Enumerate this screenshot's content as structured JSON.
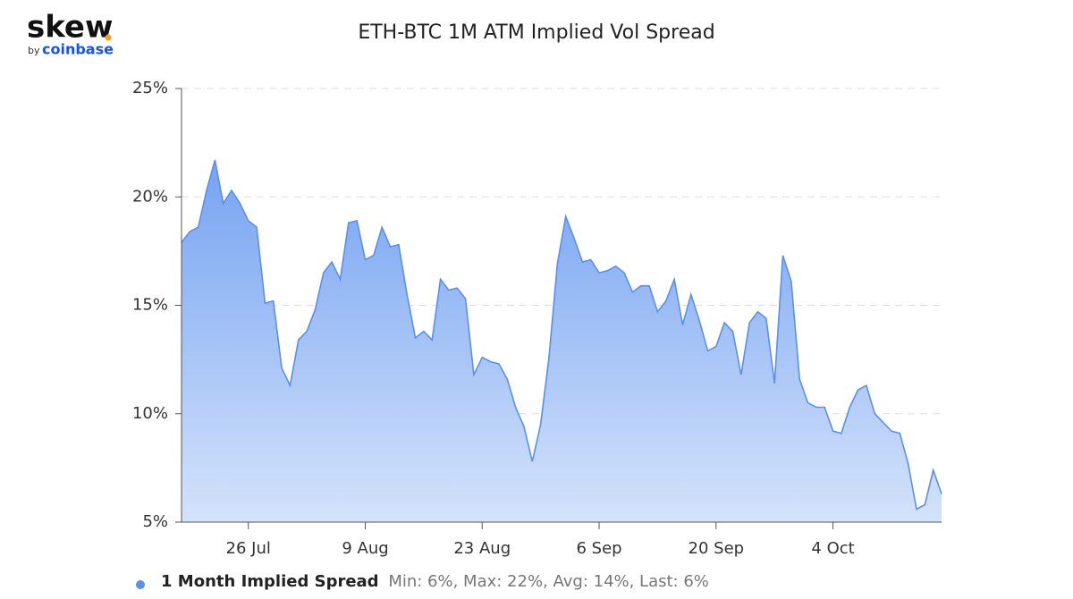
{
  "logo": {
    "name": "skew",
    "by": "by",
    "brand": "coinbase"
  },
  "chart_data": {
    "type": "area",
    "title": "ETH-BTC 1M ATM Implied Vol Spread",
    "categories": [
      null,
      null,
      null,
      null,
      null,
      null,
      null,
      null,
      "26 Jul",
      null,
      null,
      null,
      null,
      null,
      null,
      null,
      null,
      null,
      null,
      null,
      null,
      null,
      "9 Aug",
      null,
      null,
      null,
      null,
      null,
      null,
      null,
      null,
      null,
      null,
      null,
      null,
      null,
      "23 Aug",
      null,
      null,
      null,
      null,
      null,
      null,
      null,
      null,
      null,
      null,
      null,
      null,
      null,
      "6 Sep",
      null,
      null,
      null,
      null,
      null,
      null,
      null,
      null,
      null,
      null,
      null,
      null,
      null,
      "20 Sep",
      null,
      null,
      null,
      null,
      null,
      null,
      null,
      null,
      null,
      null,
      null,
      null,
      null,
      "4 Oct",
      null,
      null,
      null,
      null,
      null,
      null,
      null,
      null,
      null,
      null,
      null,
      null,
      null
    ],
    "series": [
      {
        "name": "1 Month Implied Spread",
        "color": "#5b8fe8",
        "values": [
          17.9,
          18.4,
          18.6,
          20.3,
          21.7,
          19.7,
          20.3,
          19.7,
          18.9,
          18.6,
          15.1,
          15.2,
          12.1,
          11.3,
          13.4,
          13.8,
          14.8,
          16.5,
          17.0,
          16.2,
          18.8,
          18.9,
          17.1,
          17.3,
          18.6,
          17.7,
          17.8,
          15.5,
          13.5,
          13.8,
          13.4,
          16.2,
          15.7,
          15.8,
          15.3,
          11.8,
          12.6,
          12.4,
          12.3,
          11.6,
          10.3,
          9.4,
          7.8,
          9.5,
          12.6,
          16.9,
          19.1,
          18.1,
          17.0,
          17.1,
          16.5,
          16.6,
          16.8,
          16.5,
          15.6,
          15.9,
          15.9,
          14.7,
          15.2,
          16.2,
          14.1,
          15.5,
          14.3,
          12.9,
          13.1,
          14.2,
          13.8,
          11.8,
          14.2,
          14.7,
          14.4,
          11.4,
          17.3,
          16.1,
          11.6,
          10.5,
          10.3,
          10.3,
          9.2,
          9.1,
          10.3,
          11.1,
          11.3,
          10.0,
          9.6,
          9.2,
          9.1,
          7.7,
          5.6,
          5.8,
          7.4,
          6.3
        ]
      }
    ],
    "legend_stats": "Min: 6%, Max: 22%, Avg: 14%, Last: 6%",
    "ylim": [
      5,
      25
    ],
    "yticks": [
      {
        "value": 5,
        "label": "5%"
      },
      {
        "value": 10,
        "label": "10%"
      },
      {
        "value": 15,
        "label": "15%"
      },
      {
        "value": 20,
        "label": "20%"
      },
      {
        "value": 25,
        "label": "25%"
      }
    ],
    "grid": true
  }
}
